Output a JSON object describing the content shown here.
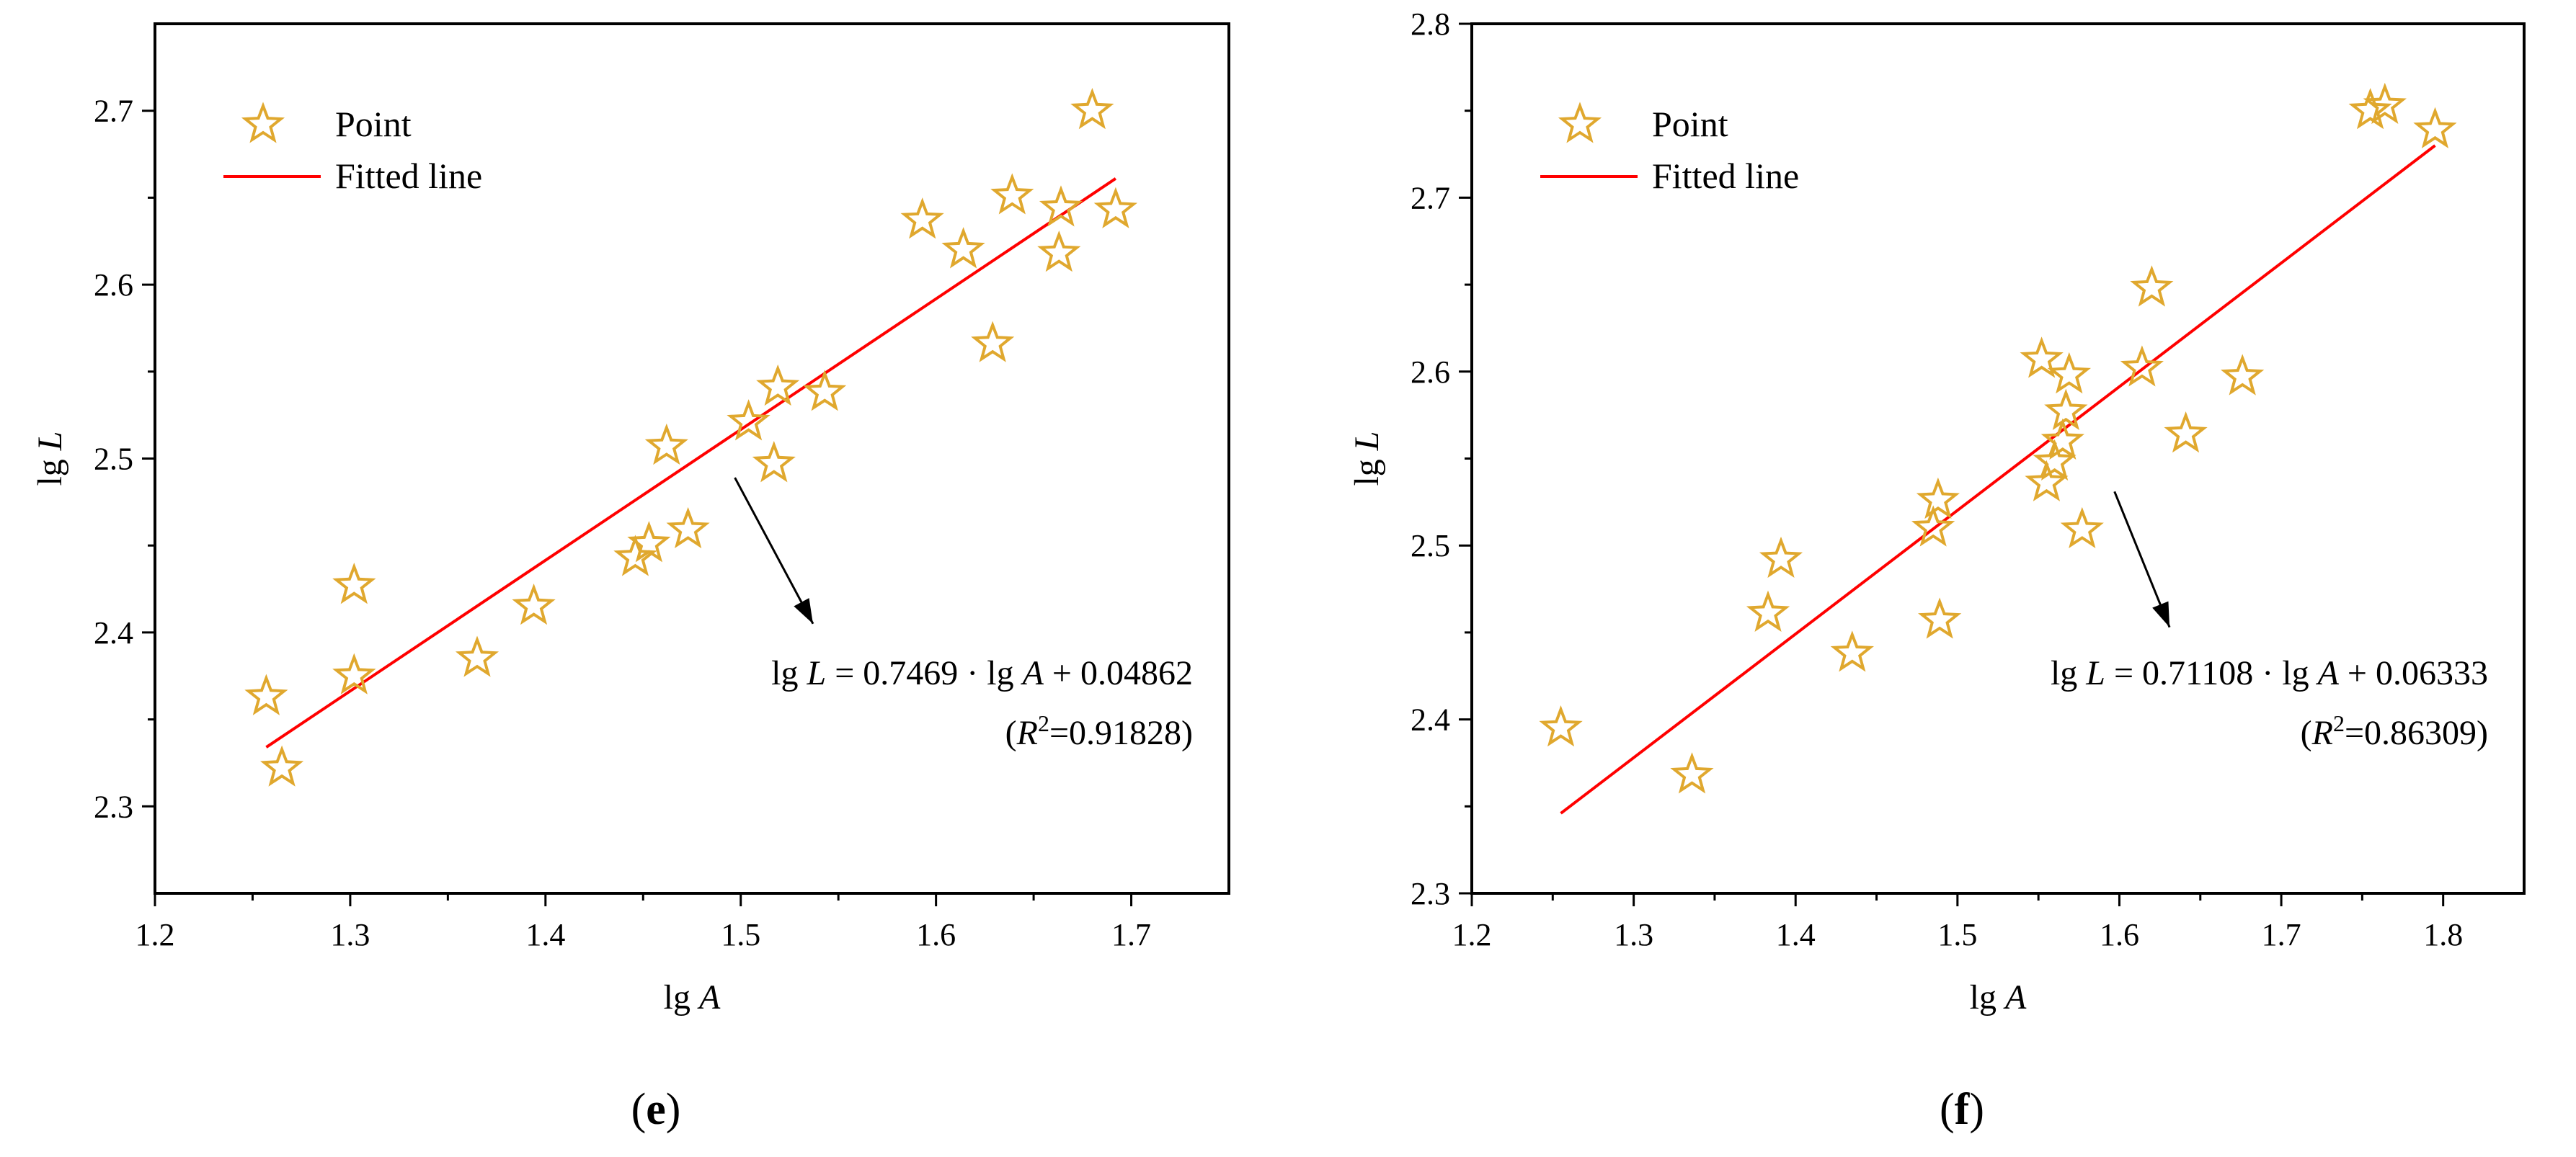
{
  "chart_data": [
    {
      "type": "scatter",
      "panel": "e",
      "caption_letter": "e",
      "xlabel_prefix": "lg ",
      "xlabel_var": "A",
      "ylabel_prefix": "lg ",
      "ylabel_var": "L",
      "xlim": [
        1.2,
        1.75
      ],
      "ylim": [
        2.25,
        2.75
      ],
      "x_ticks": [
        "1.2",
        "1.3",
        "1.4",
        "1.5",
        "1.6",
        "1.7"
      ],
      "y_ticks": [
        "2.3",
        "2.4",
        "2.5",
        "2.6",
        "2.7"
      ],
      "legend": {
        "position": "top-left",
        "point_label": "Point",
        "line_label": "Fitted line"
      },
      "points": [
        {
          "x": 1.257,
          "y": 2.363
        },
        {
          "x": 1.265,
          "y": 2.322
        },
        {
          "x": 1.302,
          "y": 2.427
        },
        {
          "x": 1.302,
          "y": 2.375
        },
        {
          "x": 1.365,
          "y": 2.385
        },
        {
          "x": 1.394,
          "y": 2.415
        },
        {
          "x": 1.446,
          "y": 2.443
        },
        {
          "x": 1.453,
          "y": 2.451
        },
        {
          "x": 1.462,
          "y": 2.507
        },
        {
          "x": 1.473,
          "y": 2.459
        },
        {
          "x": 1.504,
          "y": 2.521
        },
        {
          "x": 1.517,
          "y": 2.497
        },
        {
          "x": 1.519,
          "y": 2.541
        },
        {
          "x": 1.543,
          "y": 2.538
        },
        {
          "x": 1.593,
          "y": 2.637
        },
        {
          "x": 1.614,
          "y": 2.62
        },
        {
          "x": 1.629,
          "y": 2.566
        },
        {
          "x": 1.639,
          "y": 2.651
        },
        {
          "x": 1.663,
          "y": 2.618
        },
        {
          "x": 1.664,
          "y": 2.644
        },
        {
          "x": 1.68,
          "y": 2.7
        },
        {
          "x": 1.692,
          "y": 2.643
        }
      ],
      "fit_line": {
        "x1": 1.257,
        "y1": 2.334,
        "x2": 1.692,
        "y2": 2.661
      },
      "equation": {
        "lhs_prefix": "lg ",
        "lhs_var": "L",
        "rhs": " = 0.7469 · lg ",
        "rhs_var": "A",
        "rhs_tail": " + 0.04862"
      },
      "r2": {
        "open": "(",
        "symbol": "R",
        "sup": "2",
        "value": "=0.91828)"
      },
      "arrow": {
        "x1": 1.497,
        "y1": 2.489,
        "x2": 1.537,
        "y2": 2.405
      },
      "colors": {
        "marker": "#e0a82e",
        "line": "#ff0000",
        "axis": "#000000"
      }
    },
    {
      "type": "scatter",
      "panel": "f",
      "caption_letter": "f",
      "xlabel_prefix": "lg ",
      "xlabel_var": "A",
      "ylabel_prefix": "lg ",
      "ylabel_var": "L",
      "xlim": [
        1.2,
        1.85
      ],
      "ylim": [
        2.3,
        2.8
      ],
      "x_ticks": [
        "1.2",
        "1.3",
        "1.4",
        "1.5",
        "1.6",
        "1.7",
        "1.8"
      ],
      "y_ticks": [
        "2.3",
        "2.4",
        "2.5",
        "2.6",
        "2.7",
        "2.8"
      ],
      "legend": {
        "position": "top-left",
        "point_label": "Point",
        "line_label": "Fitted line"
      },
      "points": [
        {
          "x": 1.255,
          "y": 2.395
        },
        {
          "x": 1.336,
          "y": 2.368
        },
        {
          "x": 1.383,
          "y": 2.461
        },
        {
          "x": 1.391,
          "y": 2.492
        },
        {
          "x": 1.435,
          "y": 2.438
        },
        {
          "x": 1.485,
          "y": 2.51
        },
        {
          "x": 1.488,
          "y": 2.526
        },
        {
          "x": 1.489,
          "y": 2.457
        },
        {
          "x": 1.552,
          "y": 2.607
        },
        {
          "x": 1.555,
          "y": 2.536
        },
        {
          "x": 1.56,
          "y": 2.548
        },
        {
          "x": 1.565,
          "y": 2.56
        },
        {
          "x": 1.567,
          "y": 2.577
        },
        {
          "x": 1.569,
          "y": 2.598
        },
        {
          "x": 1.577,
          "y": 2.509
        },
        {
          "x": 1.614,
          "y": 2.602
        },
        {
          "x": 1.62,
          "y": 2.648
        },
        {
          "x": 1.641,
          "y": 2.564
        },
        {
          "x": 1.676,
          "y": 2.597
        },
        {
          "x": 1.755,
          "y": 2.75
        },
        {
          "x": 1.764,
          "y": 2.753
        },
        {
          "x": 1.795,
          "y": 2.739
        }
      ],
      "fit_line": {
        "x1": 1.255,
        "y1": 2.346,
        "x2": 1.795,
        "y2": 2.73
      },
      "equation": {
        "lhs_prefix": "lg ",
        "lhs_var": "L",
        "rhs": " = 0.71108 · lg ",
        "rhs_var": "A",
        "rhs_tail": " + 0.06333"
      },
      "r2": {
        "open": "(",
        "symbol": "R",
        "sup": "2",
        "value": "=0.86309)"
      },
      "arrow": {
        "x1": 1.597,
        "y1": 2.531,
        "x2": 1.631,
        "y2": 2.453
      },
      "colors": {
        "marker": "#e0a82e",
        "line": "#ff0000",
        "axis": "#000000"
      }
    }
  ]
}
